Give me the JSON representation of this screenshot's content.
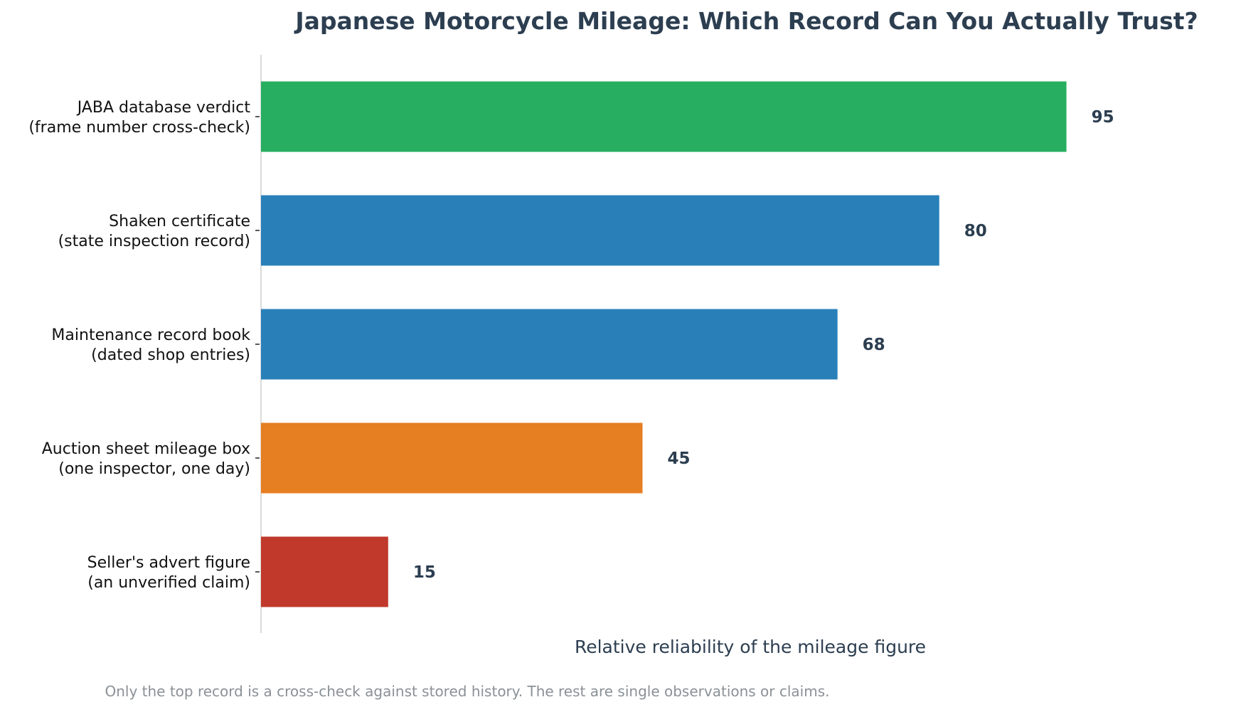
{
  "chart_data": {
    "type": "bar",
    "orientation": "horizontal",
    "title": "Japanese Motorcycle Mileage: Which Record Can You Actually Trust?",
    "xlabel": "Relative reliability of the mileage figure",
    "ylabel": "",
    "caption": "Only the top record is a cross-check against stored history. The rest are single observations or claims.",
    "xlim": [
      0,
      115
    ],
    "grid": false,
    "categories": [
      [
        "JABA database verdict",
        "(frame number cross-check)"
      ],
      [
        "Shaken certificate",
        "(state inspection record)"
      ],
      [
        "Maintenance record book",
        "(dated shop entries)"
      ],
      [
        "Auction sheet mileage box",
        "(one inspector, one day)"
      ],
      [
        "Seller's advert figure",
        "(an unverified claim)"
      ]
    ],
    "values": [
      95,
      80,
      68,
      45,
      15
    ],
    "value_labels": [
      "95",
      "80",
      "68",
      "45",
      "15"
    ],
    "colors": [
      "#27ae60",
      "#2980b9",
      "#2980b9",
      "#e67e22",
      "#c0392b"
    ]
  }
}
